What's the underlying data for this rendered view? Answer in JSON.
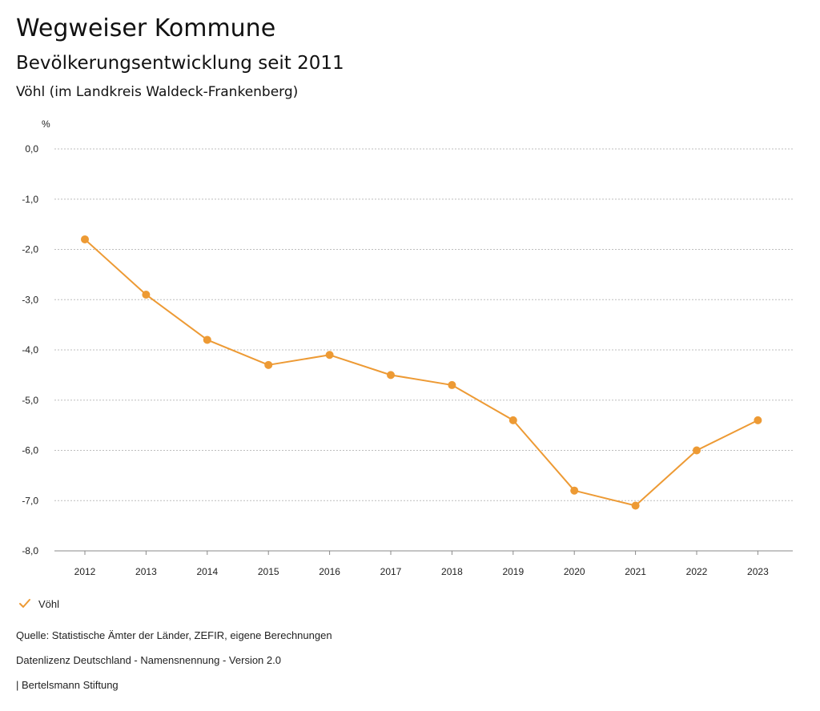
{
  "header": {
    "title": "Wegweiser Kommune",
    "subtitle": "Bevölkerungsentwicklung seit 2011",
    "region": "Vöhl (im Landkreis Waldeck-Frankenberg)"
  },
  "chart_data": {
    "type": "line",
    "unit_label": "%",
    "categories": [
      "2012",
      "2013",
      "2014",
      "2015",
      "2016",
      "2017",
      "2018",
      "2019",
      "2020",
      "2021",
      "2022",
      "2023"
    ],
    "series": [
      {
        "name": "Vöhl",
        "color": "#ed9a34",
        "values": [
          -1.8,
          -2.9,
          -3.8,
          -4.3,
          -4.1,
          -4.5,
          -4.7,
          -5.4,
          -6.8,
          -7.1,
          -6.0,
          -5.4
        ]
      }
    ],
    "ylim": [
      -8.0,
      0.0
    ],
    "yticks": [
      "0,0",
      "-1,0",
      "-2,0",
      "-3,0",
      "-4,0",
      "-5,0",
      "-6,0",
      "-7,0",
      "-8,0"
    ],
    "grid": true,
    "grid_style": "dotted",
    "legend_position": "bottom-left"
  },
  "legend": {
    "items": [
      {
        "label": "Vöhl",
        "icon": "checkmark-icon"
      }
    ]
  },
  "footer": {
    "source": "Quelle: Statistische Ämter der Länder, ZEFIR, eigene Berechnungen",
    "license": "Datenlizenz Deutschland - Namensnennung - Version 2.0",
    "publisher": "| Bertelsmann Stiftung"
  }
}
